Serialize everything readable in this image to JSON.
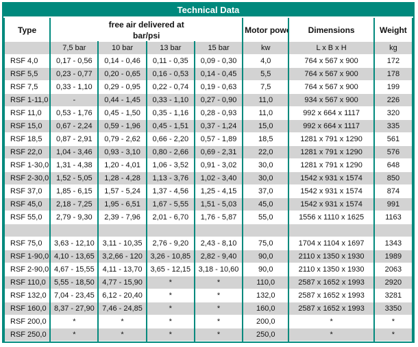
{
  "title": "Technical Data",
  "colors": {
    "accent_teal": "#00897D",
    "row_gray": "#D3D3D3",
    "row_white": "#FFFFFF"
  },
  "header": {
    "type_label": "Type",
    "free_air_line1": "free air delivered at",
    "free_air_line2": "bar/psi",
    "motor_power_label": "Motor power",
    "dimensions_label": "Dimensions",
    "weight_label": "Weight",
    "sub": {
      "bar75": "7,5 bar",
      "bar10": "10 bar",
      "bar13": "13 bar",
      "bar15": "15 bar",
      "kw": "kw",
      "lbh": "L x B x H",
      "kg": "kg"
    }
  },
  "rows": [
    [
      "RSF 4,0",
      "0,17 - 0,56",
      "0,14 - 0,46",
      "0,11 - 0,35",
      "0,09 - 0,30",
      "4,0",
      "764 x 567 x 900",
      "172"
    ],
    [
      "RSF 5,5",
      "0,23 - 0,77",
      "0,20 - 0,65",
      "0,16 - 0,53",
      "0,14 - 0,45",
      "5,5",
      "764 x 567 x 900",
      "178"
    ],
    [
      "RSF 7,5",
      "0,33 - 1,10",
      "0,29 - 0,95",
      "0,22 - 0,74",
      "0,19 - 0,63",
      "7,5",
      "764 x 567 x 900",
      "199"
    ],
    [
      "RSF 1-11,0",
      "-",
      "0,44 - 1,45",
      "0,33 - 1,10",
      "0,27 - 0,90",
      "11,0",
      "934 x 567 x 900",
      "226"
    ],
    [
      "RSF 11,0",
      "0,53 - 1,76",
      "0,45 - 1,50",
      "0,35 - 1,16",
      "0,28 - 0,93",
      "11,0",
      "992 x 664 x 1117",
      "320"
    ],
    [
      "RSF 15,0",
      "0,67 - 2,24",
      "0,59 - 1,96",
      "0,45 - 1,51",
      "0,37 - 1,24",
      "15,0",
      "992 x 664 x 1117",
      "335"
    ],
    [
      "RSF 18,5",
      "0,87 - 2,91",
      "0,79 - 2,62",
      "0,66 - 2,20",
      "0,57 - 1,89",
      "18,5",
      "1281 x 791 x 1290",
      "561"
    ],
    [
      "RSF 22,0",
      "1,04 - 3,46",
      "0,93 - 3,10",
      "0,80 - 2,66",
      "0,69 - 2,31",
      "22,0",
      "1281 x 791 x 1290",
      "576"
    ],
    [
      "RSF 1-30,0",
      "1,31 - 4,38",
      "1,20 - 4,01",
      "1,06 - 3,52",
      "0,91 - 3,02",
      "30,0",
      "1281 x 791 x 1290",
      "648"
    ],
    [
      "RSF 2-30,0",
      "1,52 - 5,05",
      "1,28 - 4,28",
      "1,13 - 3,76",
      "1,02 - 3,40",
      "30,0",
      "1542 x 931 x 1574",
      "850"
    ],
    [
      "RSF 37,0",
      "1,85 - 6,15",
      "1,57 - 5,24",
      "1,37 - 4,56",
      "1,25 - 4,15",
      "37,0",
      "1542 x 931 x 1574",
      "874"
    ],
    [
      "RSF 45,0",
      "2,18 - 7,25",
      "1,95 - 6,51",
      "1,67 - 5,55",
      "1,51 - 5,03",
      "45,0",
      "1542 x 931 x 1574",
      "991"
    ],
    [
      "RSF 55,0",
      "2,79 - 9,30",
      "2,39 - 7,96",
      "2,01 - 6,70",
      "1,76 - 5,87",
      "55,0",
      "1556 x 1110 x 1625",
      "1163"
    ],
    [
      "",
      "",
      "",
      "",
      "",
      "",
      "",
      ""
    ],
    [
      "RSF 75,0",
      "3,63 - 12,10",
      "3,11 - 10,35",
      "2,76 - 9,20",
      "2,43 - 8,10",
      "75,0",
      "1704 x 1104 x 1697",
      "1343"
    ],
    [
      "RSF 1-90,0",
      "4,10 - 13,65",
      "3,2,66 - 120",
      "3,26 - 10,85",
      "2,82 - 9,40",
      "90,0",
      "2110 x 1350 x 1930",
      "1989"
    ],
    [
      "RSF 2-90,0",
      "4,67 - 15,55",
      "4,11 - 13,70",
      "3,65 - 12,15",
      "3,18 - 10,60",
      "90,0",
      "2110 x 1350 x 1930",
      "2063"
    ],
    [
      "RSF 110,0",
      "5,55 - 18,50",
      "4,77 - 15,90",
      "*",
      "*",
      "110,0",
      "2587 x 1652 x 1993",
      "2920"
    ],
    [
      "RSF 132,0",
      "7,04 - 23,45",
      "6,12 - 20,40",
      "*",
      "*",
      "132,0",
      "2587 x 1652 x 1993",
      "3281"
    ],
    [
      "RSF 160,0",
      "8,37 - 27,90",
      "7,46 - 24,85",
      "*",
      "*",
      "160,0",
      "2587 x 1652 x 1993",
      "3350"
    ],
    [
      "RSF 200,0",
      "*",
      "*",
      "*",
      "*",
      "200,0",
      "*",
      "*"
    ],
    [
      "RSF 250,0",
      "*",
      "*",
      "*",
      "*",
      "250,0",
      "*",
      "*"
    ]
  ]
}
